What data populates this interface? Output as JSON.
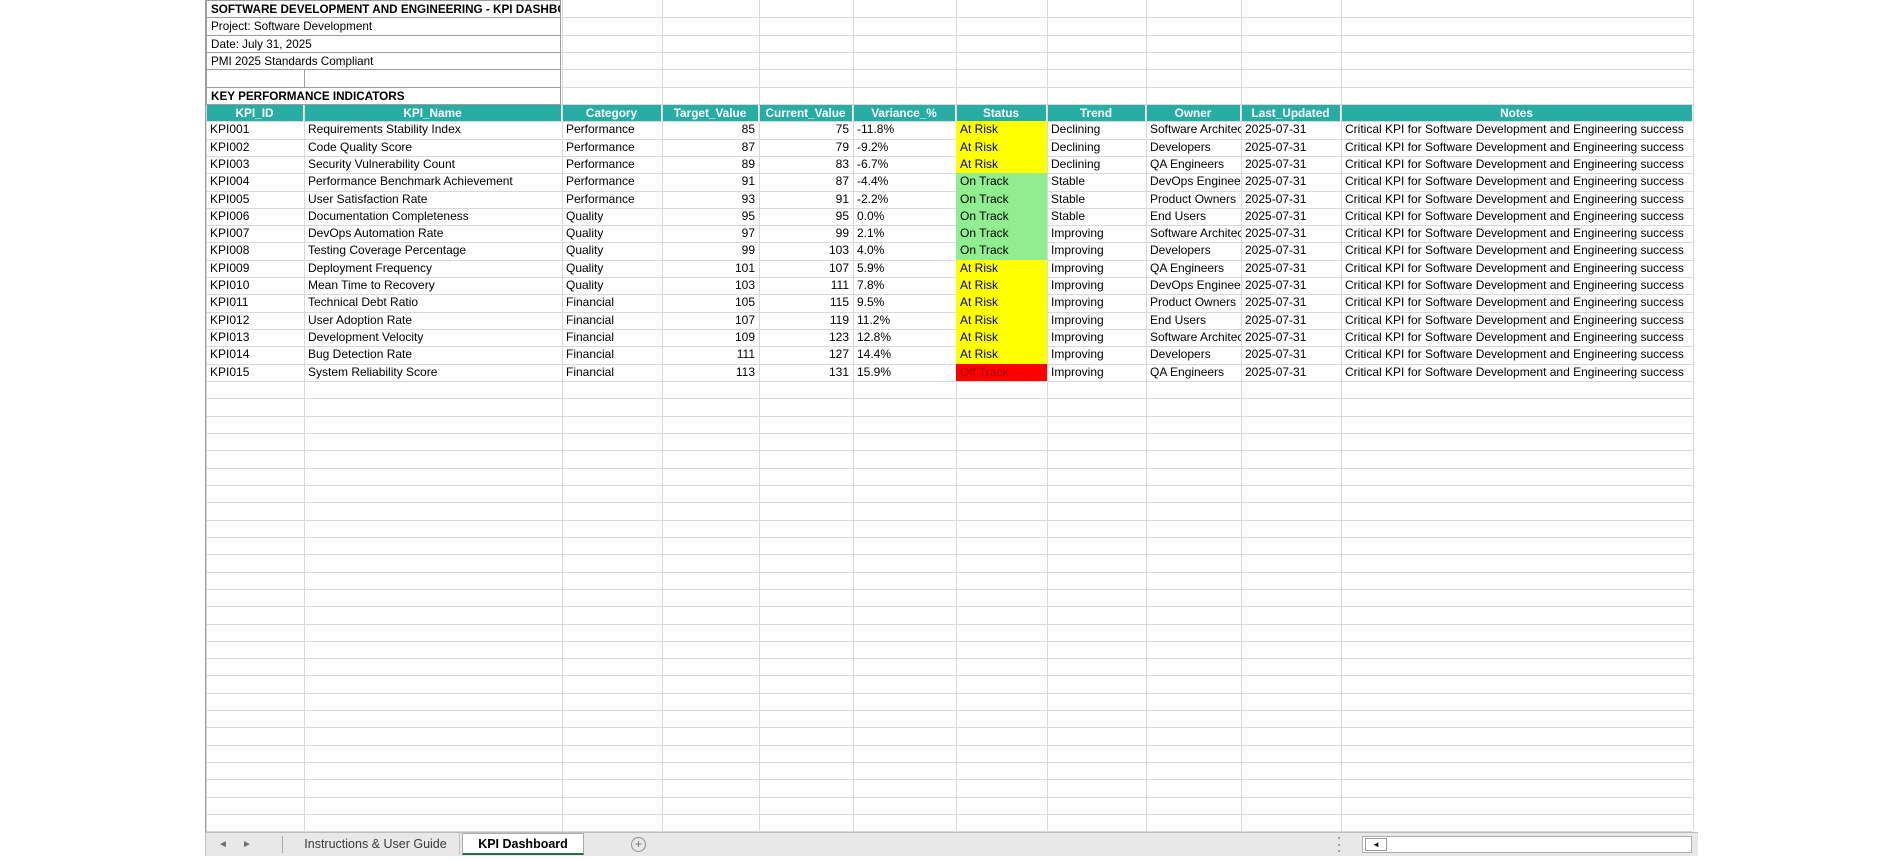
{
  "sheet": {
    "titles": [
      "SOFTWARE DEVELOPMENT AND ENGINEERING - KPI DASHBOARD",
      "Project: Software Development",
      "Date: July 31, 2025",
      "PMI 2025 Standards Compliant"
    ],
    "section_label": "KEY PERFORMANCE INDICATORS"
  },
  "table": {
    "columns": [
      "KPI_ID",
      "KPI_Name",
      "Category",
      "Target_Value",
      "Current_Value",
      "Variance_%",
      "Status",
      "Trend",
      "Owner",
      "Last_Updated",
      "Notes"
    ],
    "header_bg": "#27ada4",
    "rows": [
      {
        "id": "KPI001",
        "name": "Requirements Stability Index",
        "category": "Performance",
        "target": "85",
        "current": "75",
        "variance": "-11.8%",
        "status": "At Risk",
        "trend": "Declining",
        "owner": "Software Architects",
        "last_updated": "2025-07-31",
        "notes": "Critical KPI for Software Development and Engineering success"
      },
      {
        "id": "KPI002",
        "name": "Code Quality Score",
        "category": "Performance",
        "target": "87",
        "current": "79",
        "variance": "-9.2%",
        "status": "At Risk",
        "trend": "Declining",
        "owner": "Developers",
        "last_updated": "2025-07-31",
        "notes": "Critical KPI for Software Development and Engineering success"
      },
      {
        "id": "KPI003",
        "name": "Security Vulnerability Count",
        "category": "Performance",
        "target": "89",
        "current": "83",
        "variance": "-6.7%",
        "status": "At Risk",
        "trend": "Declining",
        "owner": "QA Engineers",
        "last_updated": "2025-07-31",
        "notes": "Critical KPI for Software Development and Engineering success"
      },
      {
        "id": "KPI004",
        "name": "Performance Benchmark Achievement",
        "category": "Performance",
        "target": "91",
        "current": "87",
        "variance": "-4.4%",
        "status": "On Track",
        "trend": "Stable",
        "owner": "DevOps Engineers",
        "last_updated": "2025-07-31",
        "notes": "Critical KPI for Software Development and Engineering success"
      },
      {
        "id": "KPI005",
        "name": "User Satisfaction Rate",
        "category": "Performance",
        "target": "93",
        "current": "91",
        "variance": "-2.2%",
        "status": "On Track",
        "trend": "Stable",
        "owner": "Product Owners",
        "last_updated": "2025-07-31",
        "notes": "Critical KPI for Software Development and Engineering success"
      },
      {
        "id": "KPI006",
        "name": "Documentation Completeness",
        "category": "Quality",
        "target": "95",
        "current": "95",
        "variance": "0.0%",
        "status": "On Track",
        "trend": "Stable",
        "owner": "End Users",
        "last_updated": "2025-07-31",
        "notes": "Critical KPI for Software Development and Engineering success"
      },
      {
        "id": "KPI007",
        "name": "DevOps Automation Rate",
        "category": "Quality",
        "target": "97",
        "current": "99",
        "variance": "2.1%",
        "status": "On Track",
        "trend": "Improving",
        "owner": "Software Architects",
        "last_updated": "2025-07-31",
        "notes": "Critical KPI for Software Development and Engineering success"
      },
      {
        "id": "KPI008",
        "name": "Testing Coverage Percentage",
        "category": "Quality",
        "target": "99",
        "current": "103",
        "variance": "4.0%",
        "status": "On Track",
        "trend": "Improving",
        "owner": "Developers",
        "last_updated": "2025-07-31",
        "notes": "Critical KPI for Software Development and Engineering success"
      },
      {
        "id": "KPI009",
        "name": "Deployment Frequency",
        "category": "Quality",
        "target": "101",
        "current": "107",
        "variance": "5.9%",
        "status": "At Risk",
        "trend": "Improving",
        "owner": "QA Engineers",
        "last_updated": "2025-07-31",
        "notes": "Critical KPI for Software Development and Engineering success"
      },
      {
        "id": "KPI010",
        "name": "Mean Time to Recovery",
        "category": "Quality",
        "target": "103",
        "current": "111",
        "variance": "7.8%",
        "status": "At Risk",
        "trend": "Improving",
        "owner": "DevOps Engineers",
        "last_updated": "2025-07-31",
        "notes": "Critical KPI for Software Development and Engineering success"
      },
      {
        "id": "KPI011",
        "name": "Technical Debt Ratio",
        "category": "Financial",
        "target": "105",
        "current": "115",
        "variance": "9.5%",
        "status": "At Risk",
        "trend": "Improving",
        "owner": "Product Owners",
        "last_updated": "2025-07-31",
        "notes": "Critical KPI for Software Development and Engineering success"
      },
      {
        "id": "KPI012",
        "name": "User Adoption Rate",
        "category": "Financial",
        "target": "107",
        "current": "119",
        "variance": "11.2%",
        "status": "At Risk",
        "trend": "Improving",
        "owner": "End Users",
        "last_updated": "2025-07-31",
        "notes": "Critical KPI for Software Development and Engineering success"
      },
      {
        "id": "KPI013",
        "name": "Development Velocity",
        "category": "Financial",
        "target": "109",
        "current": "123",
        "variance": "12.8%",
        "status": "At Risk",
        "trend": "Improving",
        "owner": "Software Architects",
        "last_updated": "2025-07-31",
        "notes": "Critical KPI for Software Development and Engineering success"
      },
      {
        "id": "KPI014",
        "name": "Bug Detection Rate",
        "category": "Financial",
        "target": "111",
        "current": "127",
        "variance": "14.4%",
        "status": "At Risk",
        "trend": "Improving",
        "owner": "Developers",
        "last_updated": "2025-07-31",
        "notes": "Critical KPI for Software Development and Engineering success"
      },
      {
        "id": "KPI015",
        "name": "System Reliability Score",
        "category": "Financial",
        "target": "113",
        "current": "131",
        "variance": "15.9%",
        "status": "Off Track",
        "trend": "Improving",
        "owner": "QA Engineers",
        "last_updated": "2025-07-31",
        "notes": "Critical KPI for Software Development and Engineering success"
      }
    ]
  },
  "status_styles": {
    "At Risk": {
      "bg": "#ffff00",
      "text": "#000000"
    },
    "On Track": {
      "bg": "#90ee90",
      "text": "#000000"
    },
    "Off Track": {
      "bg": "#ff0000",
      "text": "#9c0006"
    }
  },
  "sheet_tabs": {
    "tabs": [
      {
        "label": "Instructions & User Guide",
        "active": false
      },
      {
        "label": "KPI Dashboard",
        "active": true
      }
    ],
    "active_color": "#217346"
  },
  "icons": {
    "nav_left": "◄",
    "nav_right": "►",
    "add_sheet": "+",
    "scroll_left": "◄"
  }
}
